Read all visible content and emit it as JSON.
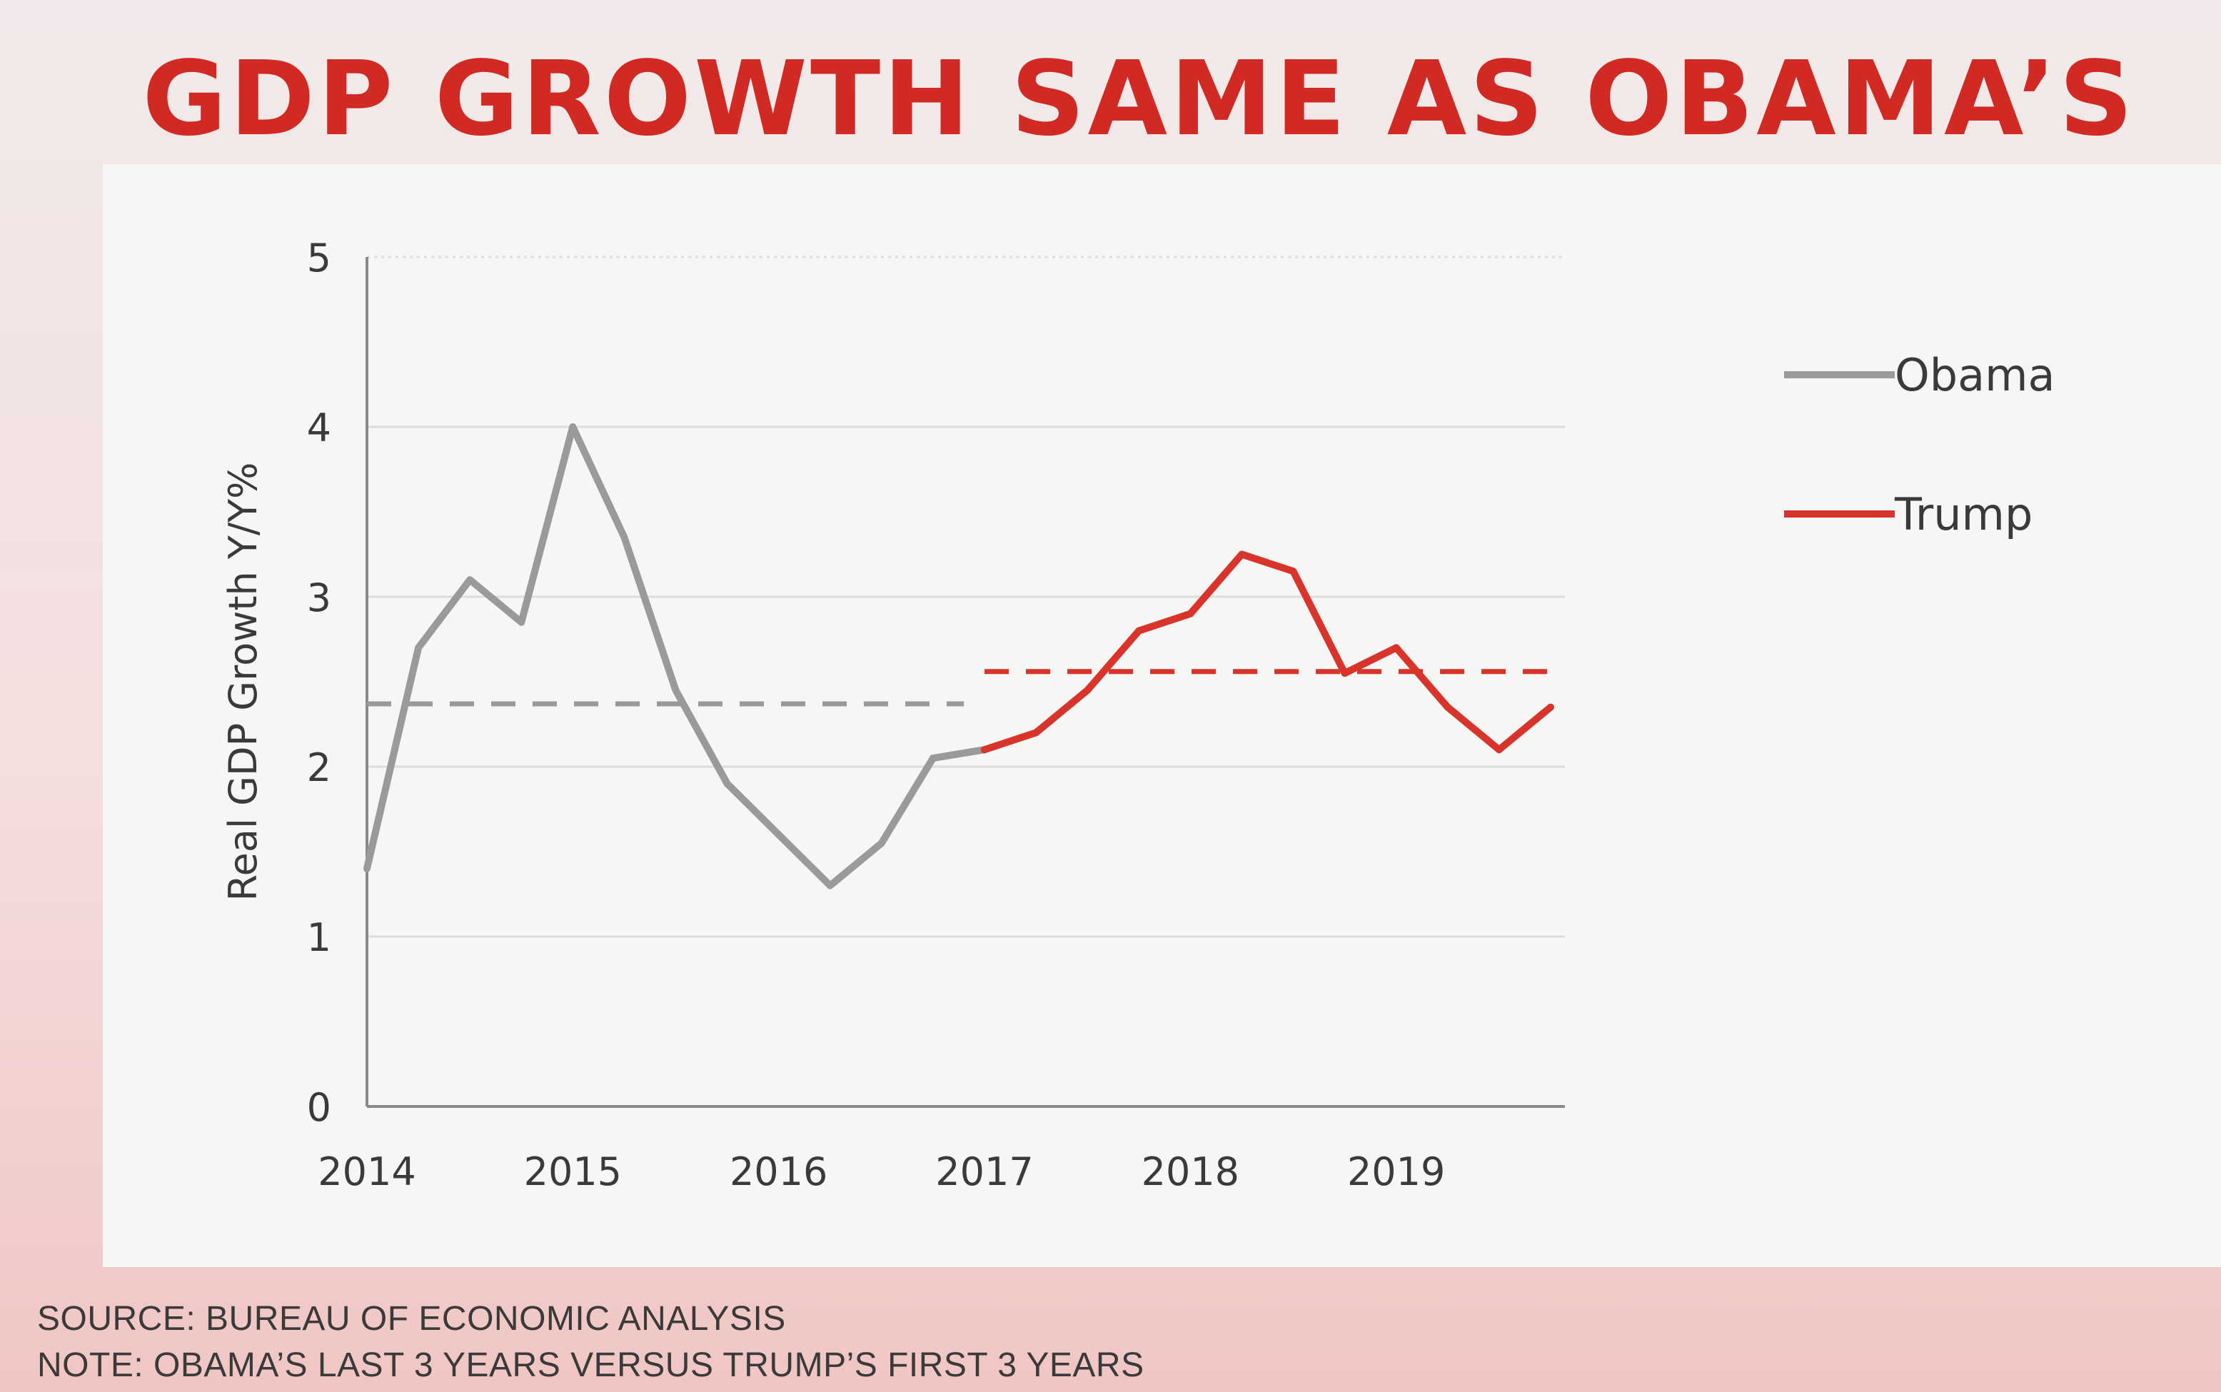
{
  "slide": {
    "title": "GDP GROWTH SAME AS OBAMA’S",
    "source": "SOURCE: BUREAU OF ECONOMIC ANALYSIS",
    "note": "NOTE: OBAMA’S LAST 3 YEARS VERSUS TRUMP’S FIRST 3 YEARS"
  },
  "colors": {
    "obama": "#9a9a9a",
    "trump": "#d9342b",
    "grid": "#dddddd",
    "axis": "#8a8a8a",
    "text": "#3a3a3a"
  },
  "chart_data": {
    "type": "line",
    "title": "GDP GROWTH SAME AS OBAMA’S",
    "xlabel": "",
    "ylabel": "Real GDP Growth Y/Y%",
    "ylim": [
      0,
      5
    ],
    "xlim": [
      2014,
      2020
    ],
    "y_ticks": [
      0,
      1,
      2,
      3,
      4,
      5
    ],
    "x_ticks": [
      "2014",
      "2015",
      "2016",
      "2017",
      "2018",
      "2019"
    ],
    "grid": true,
    "legend": "right",
    "series": [
      {
        "name": "Obama",
        "x": [
          2014.0,
          2014.25,
          2014.5,
          2014.75,
          2015.0,
          2015.25,
          2015.5,
          2015.75,
          2016.0,
          2016.25,
          2016.5,
          2016.75,
          2017.0
        ],
        "values": [
          1.4,
          2.7,
          3.1,
          2.85,
          4.0,
          3.35,
          2.45,
          1.9,
          1.6,
          1.3,
          1.55,
          2.05,
          2.1
        ]
      },
      {
        "name": "Trump",
        "x": [
          2017.0,
          2017.25,
          2017.5,
          2017.75,
          2018.0,
          2018.25,
          2018.5,
          2018.75,
          2019.0,
          2019.25,
          2019.5,
          2019.75
        ],
        "values": [
          2.1,
          2.2,
          2.45,
          2.8,
          2.9,
          3.25,
          3.15,
          2.55,
          2.7,
          2.35,
          2.1,
          2.35
        ]
      }
    ],
    "averages": [
      {
        "name": "Obama average",
        "series": "Obama",
        "value": 2.37,
        "x_range": [
          2014.0,
          2016.9
        ]
      },
      {
        "name": "Trump average",
        "series": "Trump",
        "value": 2.56,
        "x_range": [
          2017.0,
          2019.75
        ]
      }
    ]
  }
}
